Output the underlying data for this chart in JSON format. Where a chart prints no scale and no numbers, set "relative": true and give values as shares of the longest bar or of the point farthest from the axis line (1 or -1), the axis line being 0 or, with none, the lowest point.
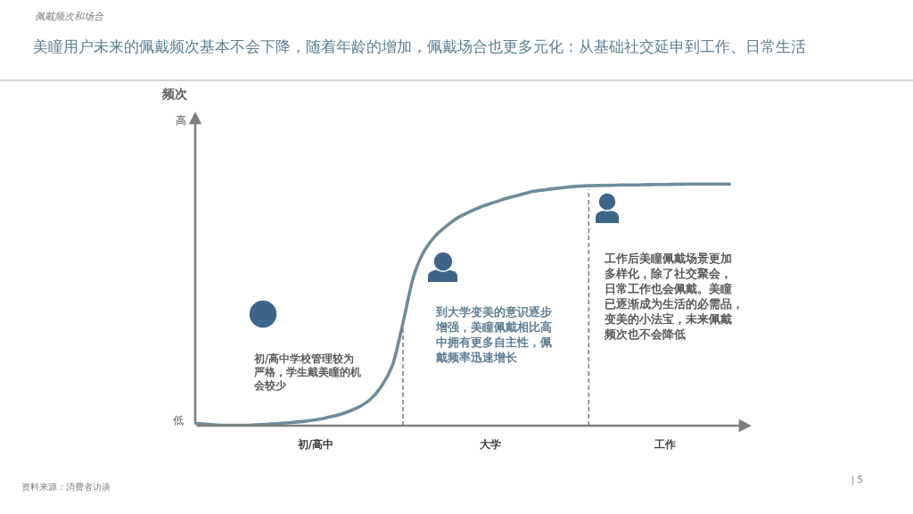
{
  "chart_data": {
    "type": "line",
    "title": "美瞳用户未来的佩戴频次基本不会下降，随着年龄的增加，佩戴场合也更多元化：从基础社交延申到工作、日常生活",
    "subtitle": "佩戴频次和场合",
    "relative": true,
    "categories": [
      null,
      null,
      null,
      null,
      null,
      null,
      null,
      null,
      null,
      null,
      null,
      "初/高中",
      null,
      null,
      null,
      null,
      null,
      null,
      null,
      null,
      null,
      null,
      null,
      null,
      null,
      null,
      null,
      "大学",
      null,
      null,
      null,
      null,
      null,
      null,
      null,
      null,
      null,
      null,
      null,
      null,
      null,
      null,
      null,
      "工作",
      null,
      null,
      null,
      null,
      null,
      null
    ],
    "series": [
      {
        "color": "#6d8c9c",
        "values": [
          0.009,
          0.006,
          0.003,
          0.002,
          0.002,
          0.002,
          0.004,
          0.007,
          0.01,
          0.014,
          0.018,
          0.024,
          0.033,
          0.043,
          0.058,
          0.078,
          0.108,
          0.161,
          0.245,
          0.424,
          0.622,
          0.727,
          0.787,
          0.827,
          0.86,
          0.883,
          0.903,
          0.919,
          0.934,
          0.947,
          0.959,
          0.97,
          0.976,
          0.982,
          0.987,
          0.991,
          0.993,
          0.994,
          0.995,
          0.996,
          0.996,
          0.997,
          0.998,
          0.998,
          0.999,
          1,
          1,
          1,
          1,
          1
        ]
      }
    ],
    "annotations": [
      "频次",
      "高",
      "低",
      "初/高中学校管理较为严格，学生戴美瞳的机会较少",
      "到大学变美的意识逐步增强，美瞳佩戴相比高中拥有更多自主性，佩戴频率迅速增长",
      "工作后美瞳佩戴场景更加多样化，除了社交聚会，日常工作也会佩戴。美瞳已逐渐成为生活的必需品，变美的小法宝，未来佩戴频次也不会降低",
      "资料来源：消费者访谈",
      "| 5"
    ]
  }
}
